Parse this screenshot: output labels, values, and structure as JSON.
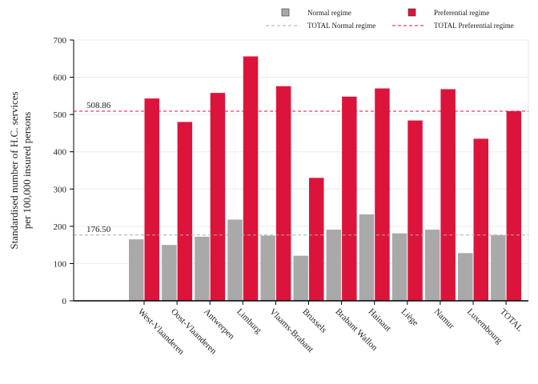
{
  "chart_data": {
    "type": "bar",
    "title": "",
    "xlabel": "",
    "ylabel": [
      "Standardised number of H.C. services",
      "per 100,000 insured persons"
    ],
    "ylim": [
      0,
      700
    ],
    "yticks": [
      0,
      100,
      200,
      300,
      400,
      500,
      600,
      700
    ],
    "categories": [
      "West-Vlaanderen",
      "Oost-Vlaanderen",
      "Antwerpen",
      "Limburg",
      "Vlaams-Brabant",
      "Brussels",
      "Brabant Wallon",
      "Hainaut",
      "Liège",
      "Namur",
      "Luxembourg",
      "TOTAL"
    ],
    "series": [
      {
        "name": "Normal regime",
        "color": "#a9a9a9",
        "values": [
          165,
          150,
          172,
          218,
          175,
          121,
          191,
          232,
          181,
          191,
          128,
          176
        ]
      },
      {
        "name": "Preferential regime",
        "color": "#dc143c",
        "values": [
          543,
          480,
          558,
          656,
          576,
          330,
          548,
          570,
          484,
          568,
          435,
          509
        ]
      }
    ],
    "reference_lines": [
      {
        "name": "TOTAL Normal regime",
        "value": 176.5,
        "label": "176.50",
        "color": "#a9a9a9",
        "style": "dashed"
      },
      {
        "name": "TOTAL Preferential regime",
        "value": 508.86,
        "label": "508.86",
        "color": "#dc143c",
        "style": "dashed"
      }
    ],
    "grid": true,
    "legend_position": "top-right"
  }
}
